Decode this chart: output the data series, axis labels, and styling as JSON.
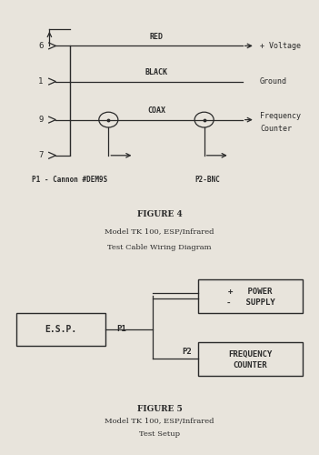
{
  "bg_color": "#e8e4dc",
  "line_color": "#2a2a2a",
  "fig_width": 3.51,
  "fig_height": 5.0,
  "dpi": 100,
  "figure4": {
    "title_line1": "FIGURE 4",
    "title_line2": "Model TK 100, ESP/Infrared",
    "title_line3": "Test Cable Wiring Diagram",
    "p1_label": "P1 - Cannon #DEM9S",
    "p2_label": "P2-BNC",
    "right_labels": [
      "+ Voltage",
      "Ground",
      "Frequency\nCounter"
    ],
    "wire_labels": [
      "RED",
      "BLACK",
      "COAX"
    ],
    "pin_labels": [
      "6",
      "1",
      "9",
      "7"
    ]
  },
  "figure5": {
    "title_line1": "FIGURE 5",
    "title_line2": "Model TK 100, ESP/Infrared",
    "title_line3": "Test Setup",
    "esp_label": "E.S.P.",
    "p1_label": "P1",
    "p2_label": "P2",
    "power_line1": "+   POWER",
    "power_line2": "-   SUPPLY",
    "freq_line1": "FREQUENCY",
    "freq_line2": "COUNTER"
  }
}
